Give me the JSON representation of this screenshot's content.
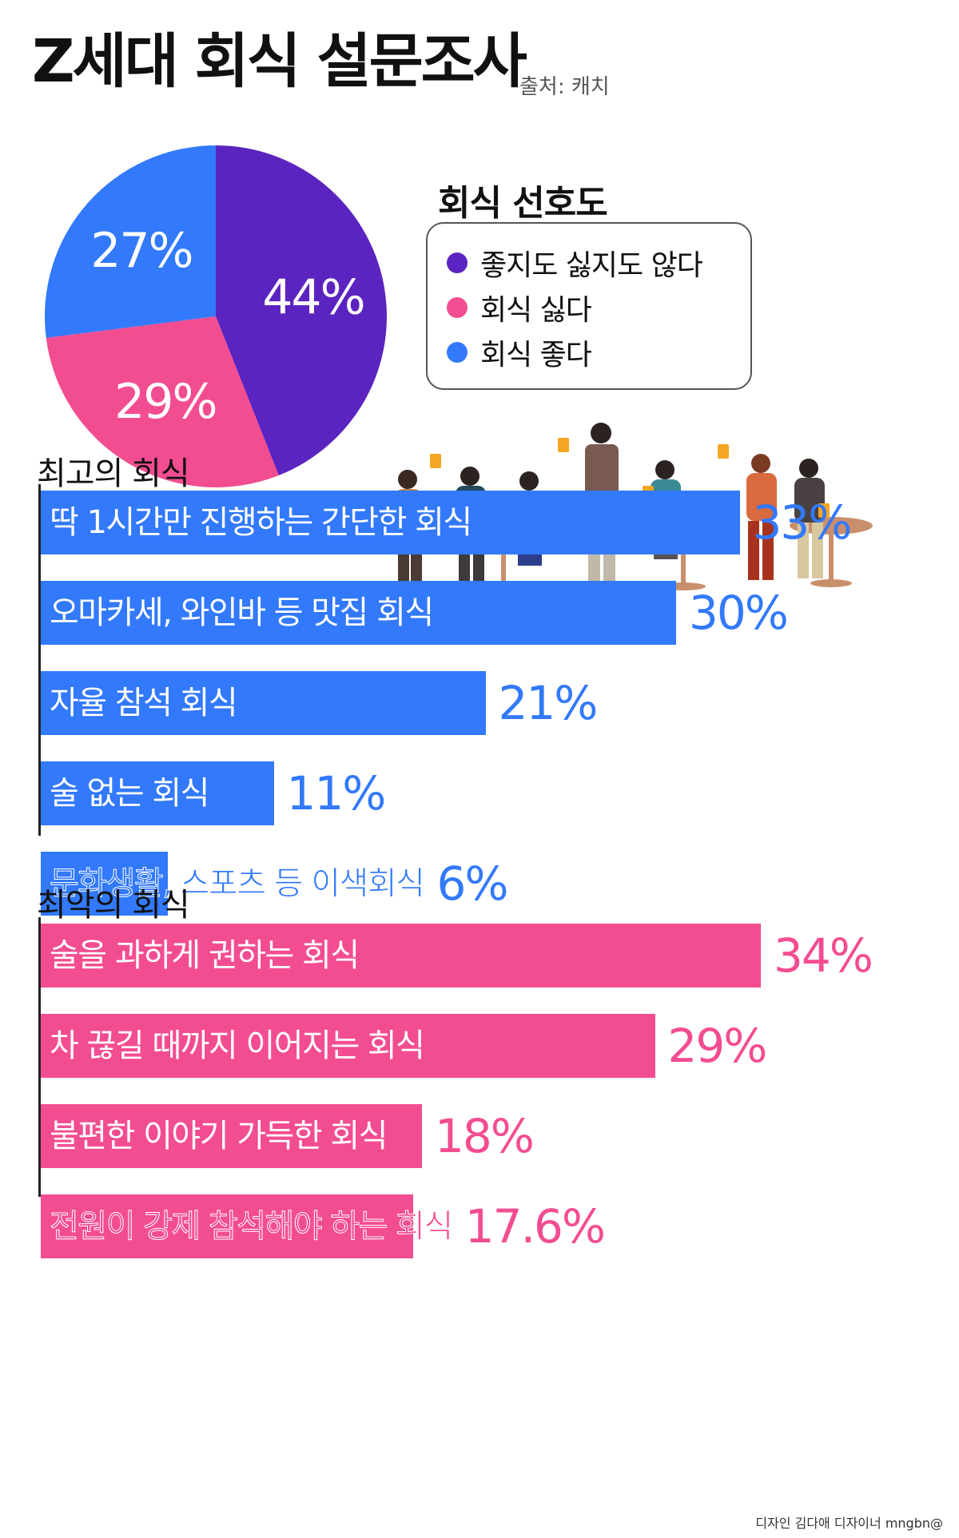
{
  "header": {
    "title": "Z세대 회식 설문조사",
    "source": "출처: 캐치"
  },
  "chart_data": [
    {
      "type": "pie",
      "title": "회식 선호도",
      "slices": [
        {
          "label": "좋지도 싫지도 않다",
          "value": 44,
          "display": "44%",
          "color": "#5b23bf"
        },
        {
          "label": "회식 싫다",
          "value": 29,
          "display": "29%",
          "color": "#f34d91"
        },
        {
          "label": "회식 좋다",
          "value": 27,
          "display": "27%",
          "color": "#3279fb"
        }
      ]
    },
    {
      "type": "bar",
      "title": "최고의 회식",
      "color": "#3279fb",
      "categories": [
        "딱 1시간만 진행하는 간단한 회식",
        "오마카세, 와인바 등 맛집 회식",
        "자율 참석 회식",
        "술 없는 회식",
        "문화생활, 스포츠 등 이색회식"
      ],
      "values": [
        33,
        30,
        21,
        11,
        6
      ],
      "value_labels": [
        "33%",
        "30%",
        "21%",
        "11%",
        "6%"
      ]
    },
    {
      "type": "bar",
      "title": "최악의 회식",
      "color": "#f34d91",
      "categories": [
        "술을 과하게 권하는 회식",
        "차 끊길 때까지 이어지는 회식",
        "불편한 이야기 가득한 회식",
        "전원이 강제 참석해야 하는 회식"
      ],
      "values": [
        34,
        29,
        18,
        17.6
      ],
      "value_labels": [
        "34%",
        "29%",
        "18%",
        "17.6%"
      ]
    }
  ],
  "footer": {
    "credit": "디자인 김다애 디자이너 mngbn@"
  }
}
